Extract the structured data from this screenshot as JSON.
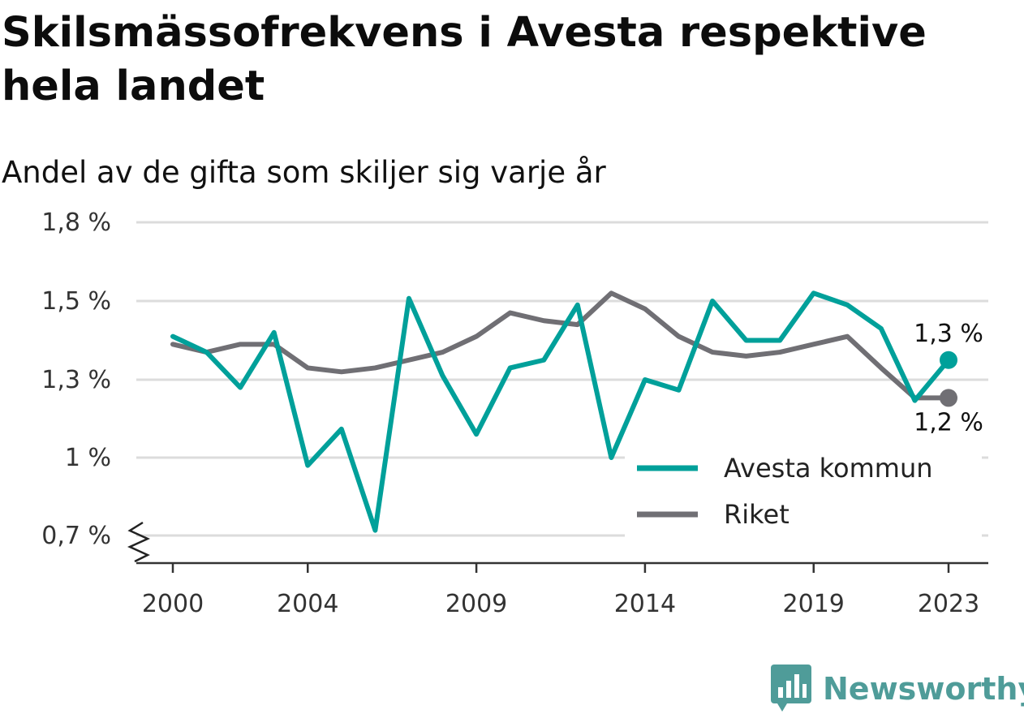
{
  "header": {
    "title": "Skilsmässofrekvens i Avesta respektive hela landet",
    "subtitle": "Andel av de gifta som skiljer sig varje år"
  },
  "brand": {
    "name": "Newsworthy",
    "icon": "newsworthy-logo-icon",
    "color": "#4f9c99"
  },
  "chart_data": {
    "type": "line",
    "x": [
      2000,
      2001,
      2002,
      2003,
      2004,
      2005,
      2006,
      2007,
      2008,
      2009,
      2010,
      2011,
      2012,
      2013,
      2014,
      2015,
      2016,
      2017,
      2018,
      2019,
      2020,
      2021,
      2022,
      2023
    ],
    "x_ticks": [
      2000,
      2004,
      2009,
      2014,
      2019,
      2023
    ],
    "y_ticks": [
      0.7,
      1.0,
      1.3,
      1.5,
      1.8
    ],
    "y_tick_labels": [
      "0,7 %",
      "1 %",
      "1,3 %",
      "1,5 %",
      "1,8 %"
    ],
    "ylim": [
      0.6,
      1.8
    ],
    "y_axis_break": true,
    "grid": true,
    "legend_position": "bottom-right",
    "series": [
      {
        "name": "Avesta kommun",
        "color": "#00a09a",
        "values": [
          1.41,
          1.37,
          1.27,
          1.42,
          0.97,
          1.11,
          0.72,
          1.51,
          1.31,
          1.09,
          1.33,
          1.35,
          1.49,
          1.0,
          1.3,
          1.26,
          1.5,
          1.4,
          1.4,
          1.53,
          1.49,
          1.43,
          1.22,
          1.35
        ],
        "end_label": "1,3 %"
      },
      {
        "name": "Riket",
        "color": "#706f74",
        "values": [
          1.39,
          1.37,
          1.39,
          1.39,
          1.33,
          1.32,
          1.33,
          1.35,
          1.37,
          1.41,
          1.47,
          1.45,
          1.44,
          1.53,
          1.48,
          1.41,
          1.37,
          1.36,
          1.37,
          1.39,
          1.41,
          1.33,
          1.23,
          1.23
        ],
        "end_label": "1,2 %"
      }
    ]
  }
}
